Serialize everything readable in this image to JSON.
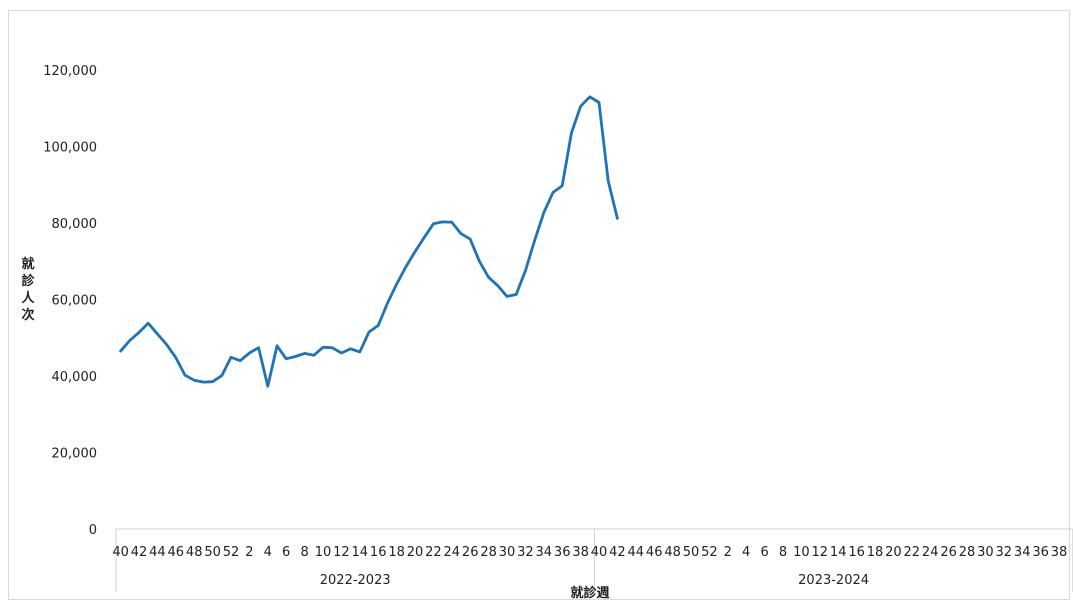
{
  "chart_data": {
    "type": "line",
    "title": "",
    "xlabel": "就診週",
    "ylabel": "就診人次",
    "ylim": [
      0,
      120000
    ],
    "yticks": [
      0,
      20000,
      40000,
      60000,
      80000,
      100000,
      120000
    ],
    "ytick_labels": [
      "0",
      "20,000",
      "40,000",
      "60,000",
      "80,000",
      "100,000",
      "120,000"
    ],
    "grid": false,
    "legend": "none",
    "line_color": "#1f73b7",
    "season_groups": [
      {
        "label": "2022-2023",
        "weeks": [
          "40",
          "41",
          "42",
          "43",
          "44",
          "45",
          "46",
          "47",
          "48",
          "49",
          "50",
          "51",
          "52",
          "1",
          "2",
          "3",
          "4",
          "5",
          "6",
          "7",
          "8",
          "9",
          "10",
          "11",
          "12",
          "13",
          "14",
          "15",
          "16",
          "17",
          "18",
          "19",
          "20",
          "21",
          "22",
          "23",
          "24",
          "25",
          "26",
          "27",
          "28",
          "29",
          "30",
          "31",
          "32",
          "33",
          "34",
          "35",
          "36",
          "37",
          "38",
          "39"
        ]
      },
      {
        "label": "2023-2024",
        "weeks": [
          "40",
          "41",
          "42",
          "43",
          "44",
          "45",
          "46",
          "47",
          "48",
          "49",
          "50",
          "51",
          "52",
          "1",
          "2",
          "3",
          "4",
          "5",
          "6",
          "7",
          "8",
          "9",
          "10",
          "11",
          "12",
          "13",
          "14",
          "15",
          "16",
          "17",
          "18",
          "19",
          "20",
          "21",
          "22",
          "23",
          "24",
          "25",
          "26",
          "27",
          "28",
          "29",
          "30",
          "31",
          "32",
          "33",
          "34",
          "35",
          "36",
          "37",
          "38",
          "39"
        ]
      }
    ],
    "shown_tick_labels": [
      "40",
      "42",
      "44",
      "46",
      "48",
      "50",
      "52",
      "2",
      "4",
      "6",
      "8",
      "10",
      "12",
      "14",
      "16",
      "18",
      "20",
      "22",
      "24",
      "26",
      "28",
      "30",
      "32",
      "34",
      "36",
      "38",
      "40",
      "42",
      "44",
      "46",
      "48",
      "50",
      "52",
      "2",
      "4",
      "6",
      "8",
      "10",
      "12",
      "14",
      "16",
      "18",
      "20",
      "22",
      "24",
      "26",
      "28",
      "30",
      "32",
      "34",
      "36",
      "38"
    ],
    "series": [
      {
        "values": [
          46500,
          49300,
          51400,
          53800,
          51000,
          48200,
          44800,
          40200,
          38900,
          38400,
          38500,
          40100,
          44900,
          44000,
          46000,
          47400,
          37300,
          47900,
          44500,
          45100,
          45900,
          45400,
          47500,
          47400,
          46000,
          47100,
          46300,
          51500,
          53200,
          59000,
          64000,
          68500,
          72500,
          76200,
          79800,
          80300,
          80200,
          77200,
          75800,
          70000,
          65800,
          63600,
          60800,
          61300,
          67500,
          75400,
          82700,
          88000,
          89700,
          103500,
          110500,
          113000,
          111500,
          91000,
          81200
        ]
      }
    ]
  }
}
